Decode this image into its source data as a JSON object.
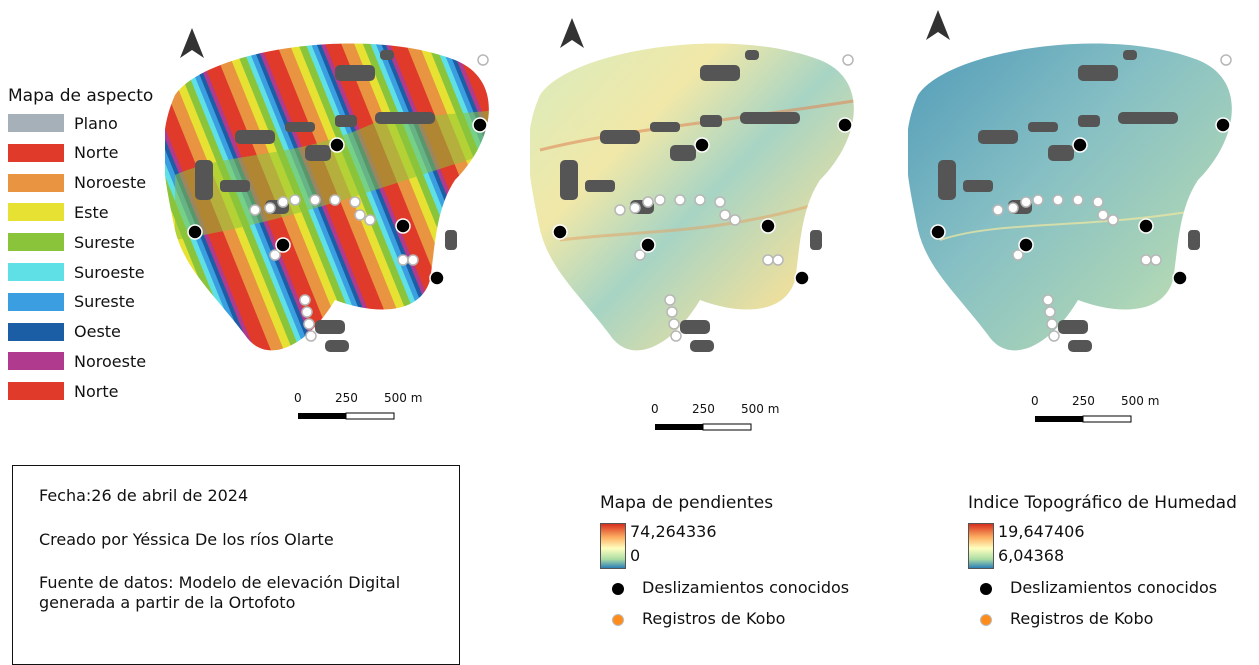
{
  "aspect_legend": {
    "title": "Mapa de aspecto",
    "items": [
      {
        "label": "Plano",
        "color": "#a6b0b8"
      },
      {
        "label": "Norte",
        "color": "#e03a2a"
      },
      {
        "label": "Noroeste",
        "color": "#e89440"
      },
      {
        "label": "Este",
        "color": "#e6e132"
      },
      {
        "label": "Sureste",
        "color": "#8ac43a"
      },
      {
        "label": "Suroeste",
        "color": "#5ee0e6"
      },
      {
        "label": "Sureste",
        "color": "#3a9ee0"
      },
      {
        "label": "Oeste",
        "color": "#1c5ea6"
      },
      {
        "label": "Noroeste",
        "color": "#b03a8e"
      },
      {
        "label": "Norte",
        "color": "#e03a2a"
      }
    ]
  },
  "scalebar": {
    "tick0": "0",
    "tick1": "250",
    "tick2": "500 m"
  },
  "info": {
    "date": "Fecha:26 de abril de 2024",
    "author": "Creado por Yéssica De los ríos Olarte",
    "source": "Fuente de datos: Modelo de elevación Digital\ngenerada a partir de la Ortofoto"
  },
  "slope_legend": {
    "title": "Mapa de pendientes",
    "max": "74,264336",
    "min": "0",
    "point1": "Deslizamientos conocidos",
    "point2": "Registros de Kobo"
  },
  "twi_legend": {
    "title": "Indice Topográfico de Humedad",
    "max": "19,647406",
    "min": "6,04368",
    "point1": "Deslizamientos conocidos",
    "point2": "Registros de Kobo"
  },
  "colors": {
    "ramp_high": "#d7301f",
    "ramp_mid": "#ffffbf",
    "ramp_low": "#2c7fb8",
    "landslide": "#000000",
    "kobo": "#ff8c1a",
    "buildings": "#555555"
  },
  "icons": [
    "north-arrow-icon",
    "landslide-point-icon",
    "kobo-point-icon"
  ]
}
